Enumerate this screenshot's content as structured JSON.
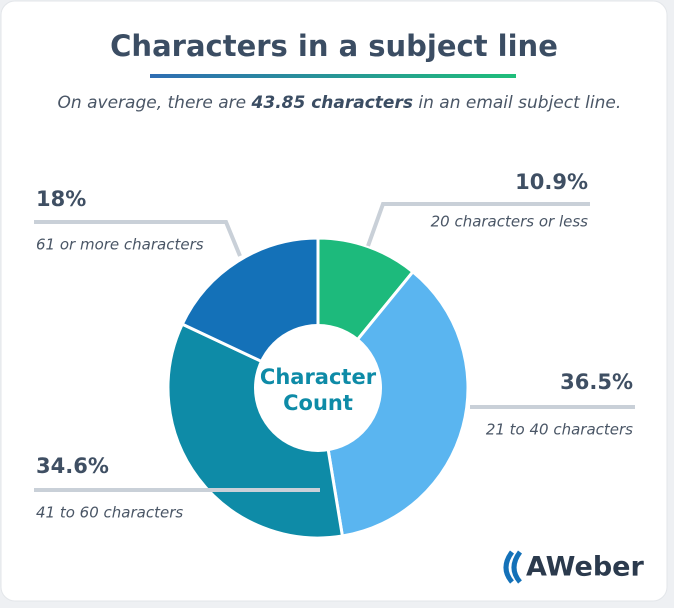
{
  "chart_data": {
    "type": "donut",
    "title": "Characters in a subject line",
    "subtitle": [
      "On average, there are ",
      "43.85 characters",
      " in an email subject line."
    ],
    "center_label": [
      "Character",
      "Count"
    ],
    "categories": [
      "20 characters or less",
      "21 to 40 characters",
      "41 to 60 characters",
      "61 or more characters"
    ],
    "values": [
      10.9,
      36.5,
      34.6,
      18
    ],
    "value_labels": [
      "10.9%",
      "36.5%",
      "34.6%",
      "18%"
    ],
    "colors": [
      "#1dba7c",
      "#5ab5f0",
      "#0e8ba7",
      "#1471b8"
    ]
  },
  "logo": "AWeber"
}
